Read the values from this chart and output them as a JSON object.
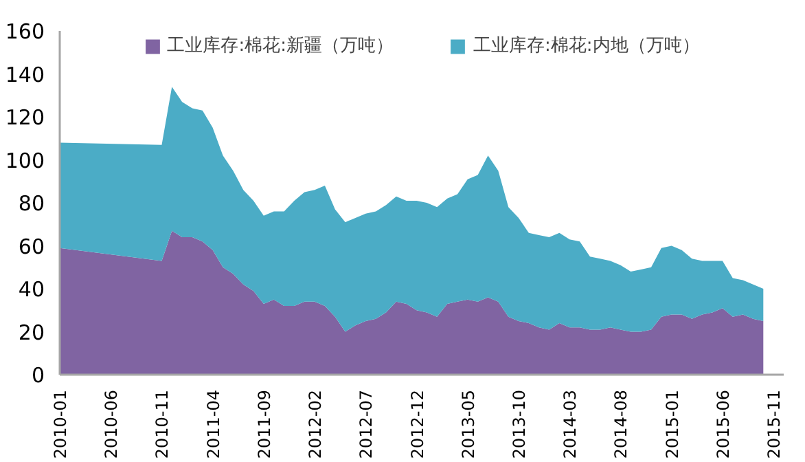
{
  "chart_data": {
    "type": "area",
    "stacked": true,
    "legend": "top",
    "x": [
      "2010-01",
      "2010-11",
      "2010-12",
      "2011-01",
      "2011-02",
      "2011-03",
      "2011-04",
      "2011-05",
      "2011-06",
      "2011-07",
      "2011-08",
      "2011-09",
      "2011-10",
      "2011-11",
      "2011-12",
      "2012-01",
      "2012-02",
      "2012-03",
      "2012-04",
      "2012-05",
      "2012-06",
      "2012-07",
      "2012-08",
      "2012-09",
      "2012-10",
      "2012-11",
      "2012-12",
      "2013-01",
      "2013-02",
      "2013-03",
      "2013-04",
      "2013-05",
      "2013-06",
      "2013-07",
      "2013-08",
      "2013-09",
      "2013-10",
      "2013-11",
      "2013-12",
      "2014-01",
      "2014-02",
      "2014-03",
      "2014-04",
      "2014-05",
      "2014-06",
      "2014-07",
      "2014-08",
      "2014-09",
      "2014-10",
      "2014-11",
      "2014-12",
      "2015-01",
      "2015-02",
      "2015-03",
      "2015-04",
      "2015-05",
      "2015-06",
      "2015-07",
      "2015-08",
      "2015-09",
      "2015-10"
    ],
    "series": [
      {
        "name": "工业库存:棉花:新疆（万吨）",
        "color": "#8064a2",
        "values": [
          59,
          53,
          67,
          64,
          64,
          62,
          58,
          50,
          47,
          42,
          39,
          33,
          35,
          32,
          32,
          34,
          34,
          32,
          27,
          20,
          23,
          25,
          26,
          29,
          34,
          33,
          30,
          29,
          27,
          33,
          34,
          35,
          34,
          36,
          34,
          27,
          25,
          24,
          22,
          21,
          24,
          22,
          22,
          21,
          21,
          22,
          21,
          20,
          20,
          21,
          27,
          28,
          28,
          26,
          28,
          29,
          31,
          27,
          28,
          26,
          25
        ]
      },
      {
        "name": "工业库存:棉花:内地（万吨）",
        "color": "#4bacc6",
        "values": [
          49,
          54,
          67,
          63,
          60,
          61,
          57,
          52,
          48,
          44,
          42,
          41,
          41,
          44,
          49,
          51,
          52,
          56,
          50,
          51,
          50,
          50,
          50,
          50,
          49,
          48,
          51,
          51,
          51,
          49,
          50,
          56,
          59,
          66,
          61,
          51,
          48,
          42,
          43,
          43,
          42,
          41,
          40,
          34,
          33,
          31,
          30,
          28,
          29,
          29,
          32,
          32,
          30,
          28,
          25,
          24,
          22,
          18,
          16,
          16,
          15
        ]
      }
    ],
    "ylim": [
      0,
      160
    ],
    "yticks": [
      0,
      20,
      40,
      60,
      80,
      100,
      120,
      140,
      160
    ],
    "xlim": [
      "2010-01",
      "2015-12"
    ],
    "xticks": [
      "2010-01",
      "2010-06",
      "2010-11",
      "2011-04",
      "2011-09",
      "2012-02",
      "2012-07",
      "2012-12",
      "2013-05",
      "2013-10",
      "2014-03",
      "2014-08",
      "2015-01",
      "2015-06",
      "2015-11"
    ],
    "grid": false
  }
}
